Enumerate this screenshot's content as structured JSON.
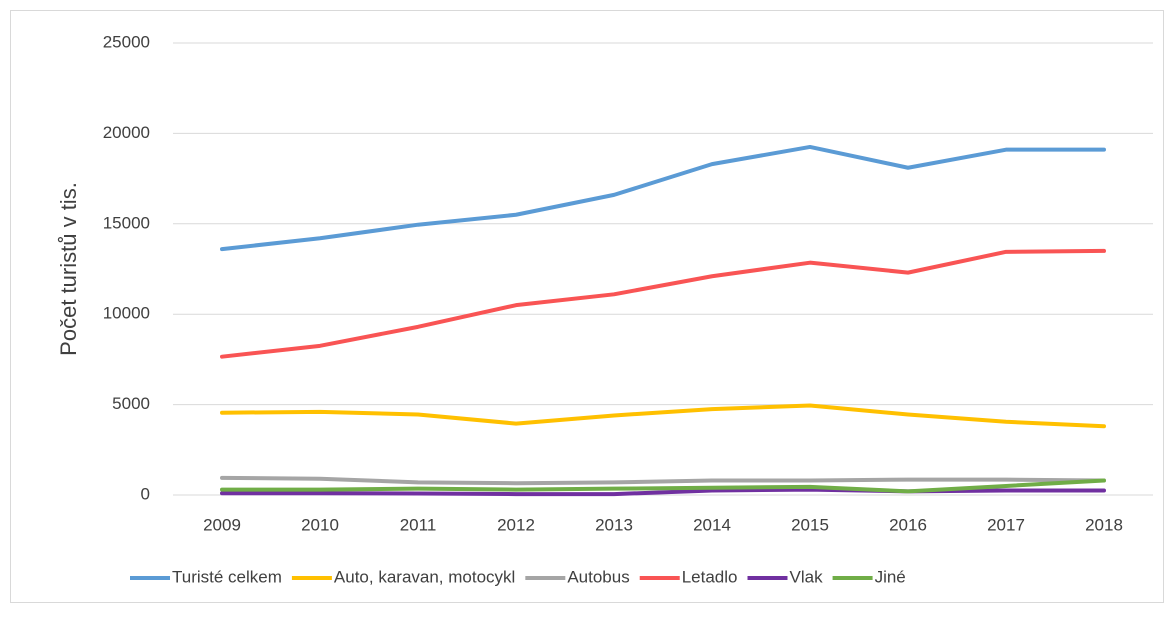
{
  "chart_data": {
    "type": "line",
    "y_label": "Počet turistů v tis.",
    "categories": [
      "2009",
      "2010",
      "2011",
      "2012",
      "2013",
      "2014",
      "2015",
      "2016",
      "2017",
      "2018"
    ],
    "series": [
      {
        "name": "Turisté celkem",
        "color": "#5b9bd5",
        "values": [
          13600,
          14200,
          14950,
          15500,
          16600,
          18300,
          19250,
          18100,
          19100,
          19100
        ]
      },
      {
        "name": "Auto, karavan, motocykl",
        "color": "#ffc000",
        "values": [
          4550,
          4600,
          4450,
          3950,
          4400,
          4750,
          4950,
          4450,
          4050,
          3800
        ]
      },
      {
        "name": "Autobus",
        "color": "#a5a5a5",
        "values": [
          950,
          900,
          700,
          650,
          700,
          800,
          800,
          850,
          850,
          800
        ]
      },
      {
        "name": "Letadlo",
        "color": "#f95454",
        "values": [
          7650,
          8250,
          9300,
          10500,
          11100,
          12100,
          12850,
          12300,
          13450,
          13500
        ]
      },
      {
        "name": "Vlak",
        "color": "#7030a0",
        "values": [
          100,
          100,
          80,
          50,
          50,
          250,
          300,
          200,
          250,
          250
        ]
      },
      {
        "name": "Jiné",
        "color": "#70ad47",
        "values": [
          300,
          300,
          350,
          300,
          350,
          400,
          450,
          200,
          500,
          800
        ]
      }
    ],
    "ylim": [
      0,
      25000
    ],
    "yticks": [
      0,
      5000,
      10000,
      15000,
      20000,
      25000
    ],
    "grid": true,
    "legend": "bottom"
  }
}
